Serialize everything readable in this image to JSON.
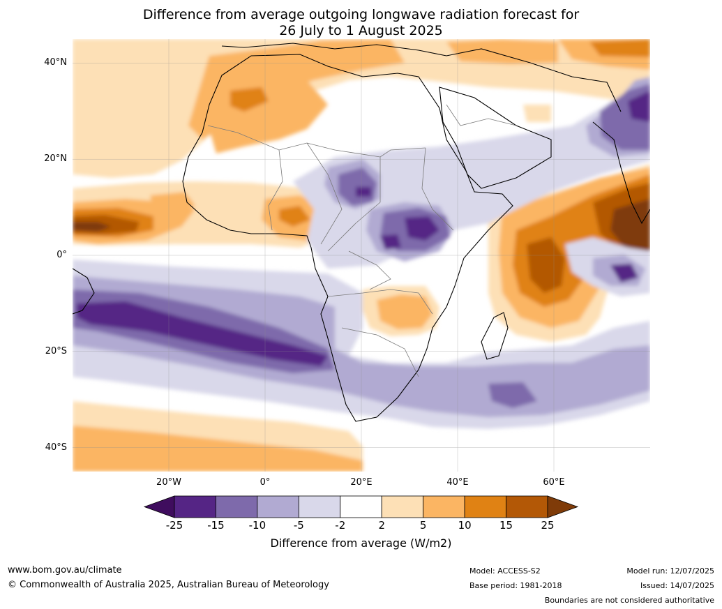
{
  "title": {
    "line1": "Difference from average outgoing longwave radiation forecast for",
    "line2": "26 July to 1 August 2025"
  },
  "map": {
    "lat_labels": [
      "40°N",
      "20°N",
      "0°",
      "20°S",
      "40°S"
    ],
    "lon_labels": [
      "20°W",
      "0°",
      "20°E",
      "40°E",
      "60°E"
    ],
    "lat_values": [
      40,
      20,
      0,
      -20,
      -40
    ],
    "lon_values": [
      -20,
      0,
      20,
      40,
      60
    ],
    "lon_range": [
      -40,
      80
    ],
    "lat_range": [
      -45,
      45
    ]
  },
  "colorbar": {
    "ticks": [
      "-25",
      "-15",
      "-10",
      "-5",
      "-2",
      "2",
      "5",
      "10",
      "15",
      "25"
    ],
    "colors": [
      "#3f0d5e",
      "#552585",
      "#7e6aab",
      "#b1aad2",
      "#d9d8ea",
      "#ffffff",
      "#fde0b6",
      "#fbb563",
      "#e08214",
      "#b35806",
      "#7f3b08"
    ],
    "label": "Difference from average (W/m2)"
  },
  "footer": {
    "website": "www.bom.gov.au/climate",
    "copyright": "© Commonwealth of Australia 2025, Australian Bureau of Meteorology",
    "model": "Model: ACCESS-S2",
    "base_period": "Base period: 1981-2018",
    "model_run": "Model run: 12/07/2025",
    "issued": "Issued: 14/07/2025",
    "disclaimer": "Boundaries are not considered authoritative"
  }
}
